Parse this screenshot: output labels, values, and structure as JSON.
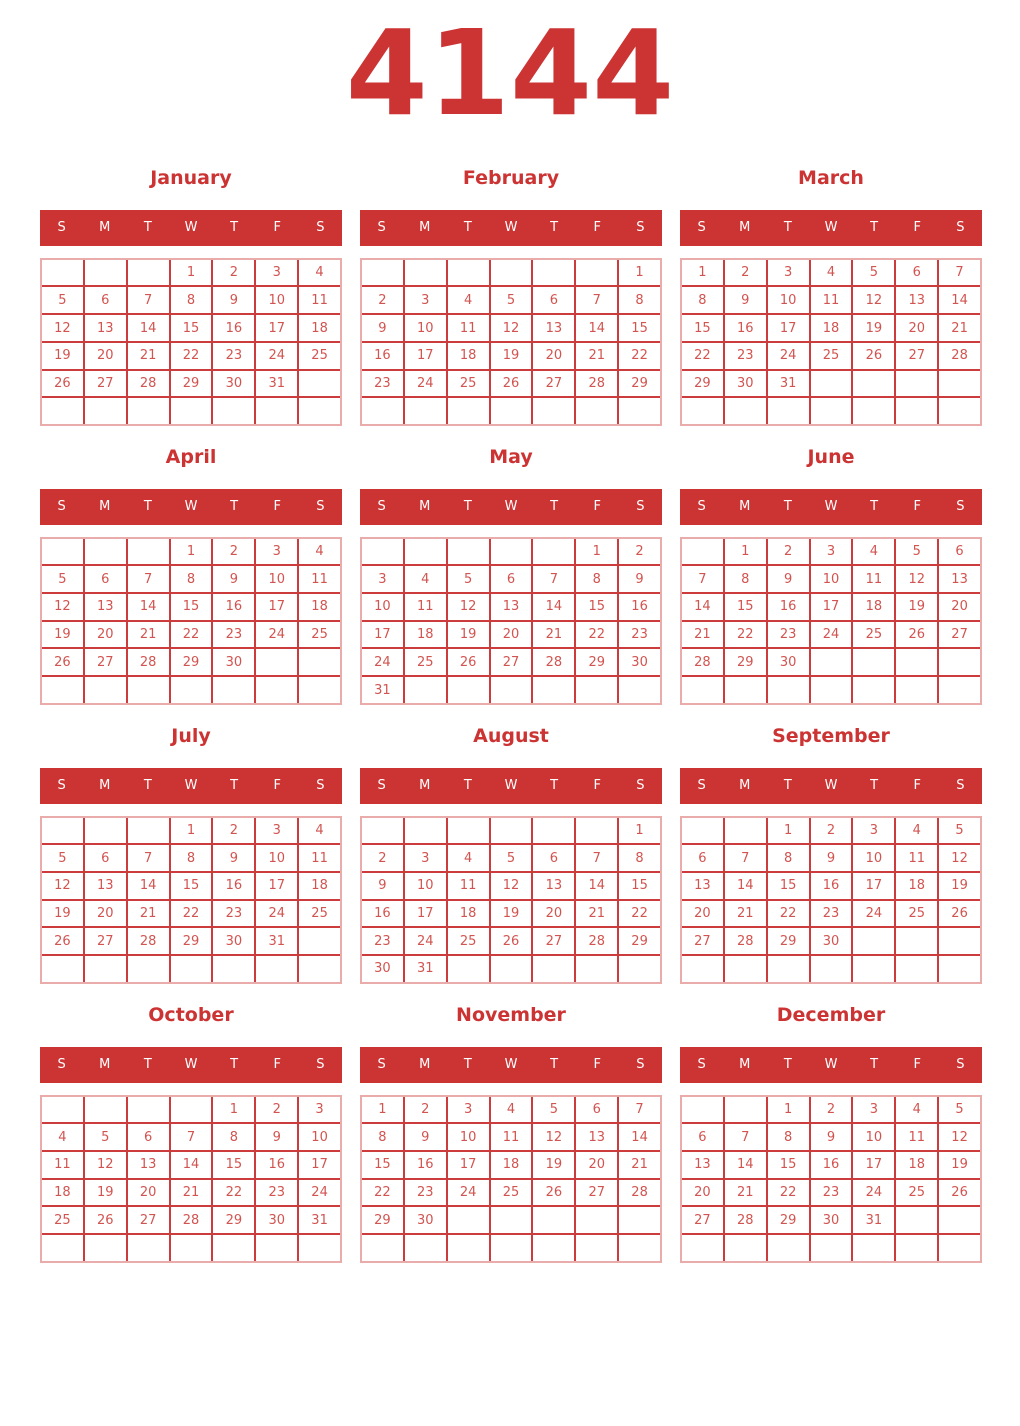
{
  "title": "4144",
  "weekday_headers": [
    "S",
    "M",
    "T",
    "W",
    "T",
    "F",
    "S"
  ],
  "colors": {
    "header_red": "#cc3333",
    "title_red": "#cc3333",
    "day_number": "#d25450",
    "grid_line": "#cd3c3c",
    "grid_outline": "#eaabab",
    "background": "#ffffff",
    "weekday_text": "#ffffff"
  },
  "months": [
    {
      "name": "January",
      "rows": [
        [
          "",
          "",
          "",
          "1",
          "2",
          "3",
          "4"
        ],
        [
          "5",
          "6",
          "7",
          "8",
          "9",
          "10",
          "11"
        ],
        [
          "12",
          "13",
          "14",
          "15",
          "16",
          "17",
          "18"
        ],
        [
          "19",
          "20",
          "21",
          "22",
          "23",
          "24",
          "25"
        ],
        [
          "26",
          "27",
          "28",
          "29",
          "30",
          "31",
          ""
        ],
        [
          "",
          "",
          "",
          "",
          "",
          "",
          ""
        ]
      ]
    },
    {
      "name": "February",
      "rows": [
        [
          "",
          "",
          "",
          "",
          "",
          "",
          "1"
        ],
        [
          "2",
          "3",
          "4",
          "5",
          "6",
          "7",
          "8"
        ],
        [
          "9",
          "10",
          "11",
          "12",
          "13",
          "14",
          "15"
        ],
        [
          "16",
          "17",
          "18",
          "19",
          "20",
          "21",
          "22"
        ],
        [
          "23",
          "24",
          "25",
          "26",
          "27",
          "28",
          "29"
        ],
        [
          "",
          "",
          "",
          "",
          "",
          "",
          ""
        ]
      ]
    },
    {
      "name": "March",
      "rows": [
        [
          "1",
          "2",
          "3",
          "4",
          "5",
          "6",
          "7"
        ],
        [
          "8",
          "9",
          "10",
          "11",
          "12",
          "13",
          "14"
        ],
        [
          "15",
          "16",
          "17",
          "18",
          "19",
          "20",
          "21"
        ],
        [
          "22",
          "23",
          "24",
          "25",
          "26",
          "27",
          "28"
        ],
        [
          "29",
          "30",
          "31",
          "",
          "",
          "",
          ""
        ],
        [
          "",
          "",
          "",
          "",
          "",
          "",
          ""
        ]
      ]
    },
    {
      "name": "April",
      "rows": [
        [
          "",
          "",
          "",
          "1",
          "2",
          "3",
          "4"
        ],
        [
          "5",
          "6",
          "7",
          "8",
          "9",
          "10",
          "11"
        ],
        [
          "12",
          "13",
          "14",
          "15",
          "16",
          "17",
          "18"
        ],
        [
          "19",
          "20",
          "21",
          "22",
          "23",
          "24",
          "25"
        ],
        [
          "26",
          "27",
          "28",
          "29",
          "30",
          "",
          ""
        ],
        [
          "",
          "",
          "",
          "",
          "",
          "",
          ""
        ]
      ]
    },
    {
      "name": "May",
      "rows": [
        [
          "",
          "",
          "",
          "",
          "",
          "1",
          "2"
        ],
        [
          "3",
          "4",
          "5",
          "6",
          "7",
          "8",
          "9"
        ],
        [
          "10",
          "11",
          "12",
          "13",
          "14",
          "15",
          "16"
        ],
        [
          "17",
          "18",
          "19",
          "20",
          "21",
          "22",
          "23"
        ],
        [
          "24",
          "25",
          "26",
          "27",
          "28",
          "29",
          "30"
        ],
        [
          "31",
          "",
          "",
          "",
          "",
          "",
          ""
        ]
      ]
    },
    {
      "name": "June",
      "rows": [
        [
          "",
          "1",
          "2",
          "3",
          "4",
          "5",
          "6"
        ],
        [
          "7",
          "8",
          "9",
          "10",
          "11",
          "12",
          "13"
        ],
        [
          "14",
          "15",
          "16",
          "17",
          "18",
          "19",
          "20"
        ],
        [
          "21",
          "22",
          "23",
          "24",
          "25",
          "26",
          "27"
        ],
        [
          "28",
          "29",
          "30",
          "",
          "",
          "",
          ""
        ],
        [
          "",
          "",
          "",
          "",
          "",
          "",
          ""
        ]
      ]
    },
    {
      "name": "July",
      "rows": [
        [
          "",
          "",
          "",
          "1",
          "2",
          "3",
          "4"
        ],
        [
          "5",
          "6",
          "7",
          "8",
          "9",
          "10",
          "11"
        ],
        [
          "12",
          "13",
          "14",
          "15",
          "16",
          "17",
          "18"
        ],
        [
          "19",
          "20",
          "21",
          "22",
          "23",
          "24",
          "25"
        ],
        [
          "26",
          "27",
          "28",
          "29",
          "30",
          "31",
          ""
        ],
        [
          "",
          "",
          "",
          "",
          "",
          "",
          ""
        ]
      ]
    },
    {
      "name": "August",
      "rows": [
        [
          "",
          "",
          "",
          "",
          "",
          "",
          "1"
        ],
        [
          "2",
          "3",
          "4",
          "5",
          "6",
          "7",
          "8"
        ],
        [
          "9",
          "10",
          "11",
          "12",
          "13",
          "14",
          "15"
        ],
        [
          "16",
          "17",
          "18",
          "19",
          "20",
          "21",
          "22"
        ],
        [
          "23",
          "24",
          "25",
          "26",
          "27",
          "28",
          "29"
        ],
        [
          "30",
          "31",
          "",
          "",
          "",
          "",
          ""
        ]
      ]
    },
    {
      "name": "September",
      "rows": [
        [
          "",
          "",
          "1",
          "2",
          "3",
          "4",
          "5"
        ],
        [
          "6",
          "7",
          "8",
          "9",
          "10",
          "11",
          "12"
        ],
        [
          "13",
          "14",
          "15",
          "16",
          "17",
          "18",
          "19"
        ],
        [
          "20",
          "21",
          "22",
          "23",
          "24",
          "25",
          "26"
        ],
        [
          "27",
          "28",
          "29",
          "30",
          "",
          "",
          ""
        ],
        [
          "",
          "",
          "",
          "",
          "",
          "",
          ""
        ]
      ]
    },
    {
      "name": "October",
      "rows": [
        [
          "",
          "",
          "",
          "",
          "1",
          "2",
          "3"
        ],
        [
          "4",
          "5",
          "6",
          "7",
          "8",
          "9",
          "10"
        ],
        [
          "11",
          "12",
          "13",
          "14",
          "15",
          "16",
          "17"
        ],
        [
          "18",
          "19",
          "20",
          "21",
          "22",
          "23",
          "24"
        ],
        [
          "25",
          "26",
          "27",
          "28",
          "29",
          "30",
          "31"
        ],
        [
          "",
          "",
          "",
          "",
          "",
          "",
          ""
        ]
      ]
    },
    {
      "name": "November",
      "rows": [
        [
          "1",
          "2",
          "3",
          "4",
          "5",
          "6",
          "7"
        ],
        [
          "8",
          "9",
          "10",
          "11",
          "12",
          "13",
          "14"
        ],
        [
          "15",
          "16",
          "17",
          "18",
          "19",
          "20",
          "21"
        ],
        [
          "22",
          "23",
          "24",
          "25",
          "26",
          "27",
          "28"
        ],
        [
          "29",
          "30",
          "",
          "",
          "",
          "",
          ""
        ],
        [
          "",
          "",
          "",
          "",
          "",
          "",
          ""
        ]
      ]
    },
    {
      "name": "December",
      "rows": [
        [
          "",
          "",
          "1",
          "2",
          "3",
          "4",
          "5"
        ],
        [
          "6",
          "7",
          "8",
          "9",
          "10",
          "11",
          "12"
        ],
        [
          "13",
          "14",
          "15",
          "16",
          "17",
          "18",
          "19"
        ],
        [
          "20",
          "21",
          "22",
          "23",
          "24",
          "25",
          "26"
        ],
        [
          "27",
          "28",
          "29",
          "30",
          "31",
          "",
          ""
        ],
        [
          "",
          "",
          "",
          "",
          "",
          "",
          ""
        ]
      ]
    }
  ]
}
